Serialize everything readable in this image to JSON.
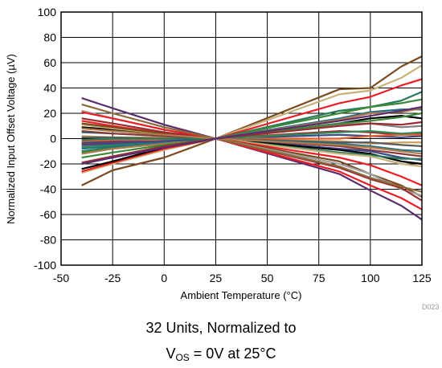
{
  "chart_data": {
    "type": "line",
    "xlabel": "Ambient Temperature (°C)",
    "ylabel": "Normalized Input Offset Voltage (µV)",
    "xlim": [
      -50,
      125
    ],
    "ylim": [
      -100,
      100
    ],
    "xticks": [
      -50,
      -25,
      0,
      25,
      50,
      75,
      100,
      125
    ],
    "yticks": [
      -100,
      -80,
      -60,
      -40,
      -20,
      0,
      20,
      40,
      60,
      80,
      100
    ],
    "grid": true,
    "legend": "none",
    "code": "D023",
    "x": [
      -40,
      -25,
      0,
      25,
      85,
      100,
      115,
      125
    ],
    "series": [
      {
        "color": "#7a4a1f",
        "values": [
          -37,
          -25,
          -15,
          0,
          39,
          40,
          57,
          65
        ]
      },
      {
        "color": "#c9b27a",
        "values": [
          -27,
          -20,
          -9,
          0,
          35,
          38,
          48,
          58
        ]
      },
      {
        "color": "#ee1c24",
        "values": [
          -26,
          -19,
          -8,
          0,
          28,
          33,
          42,
          47
        ]
      },
      {
        "color": "#2a7a5a",
        "values": [
          -10,
          -7,
          -4,
          0,
          22,
          25,
          30,
          37
        ]
      },
      {
        "color": "#3a8a3a",
        "values": [
          -11,
          -8,
          -4,
          0,
          20,
          25,
          28,
          31
        ]
      },
      {
        "color": "#1f6f86",
        "values": [
          -8,
          -6,
          -3,
          0,
          16,
          21,
          23,
          23
        ]
      },
      {
        "color": "#b07a4a",
        "values": [
          -12,
          -8,
          -4,
          0,
          15,
          20,
          21,
          24
        ]
      },
      {
        "color": "#000000",
        "values": [
          -24,
          -18,
          -7,
          0,
          12,
          16,
          18,
          16
        ]
      },
      {
        "color": "#7f7f7f",
        "values": [
          -6,
          -4,
          -2,
          0,
          11,
          12,
          9,
          10
        ]
      },
      {
        "color": "#9b2d30",
        "values": [
          -4,
          -3,
          -1,
          0,
          6,
          5,
          3,
          4
        ]
      },
      {
        "color": "#3d4a8a",
        "values": [
          -3,
          -2,
          -1,
          0,
          3,
          2,
          1,
          2
        ]
      },
      {
        "color": "#c8a060",
        "values": [
          2,
          1,
          1,
          0,
          -2,
          -4,
          -3,
          -3
        ]
      },
      {
        "color": "#e06030",
        "values": [
          -2,
          -1,
          -1,
          0,
          0,
          2,
          3,
          3
        ]
      },
      {
        "color": "#5a5a5a",
        "values": [
          1,
          1,
          0,
          0,
          -3,
          -3,
          -5,
          -6
        ]
      },
      {
        "color": "#2e8b57",
        "values": [
          -7,
          -5,
          -2,
          0,
          5,
          6,
          4,
          5
        ]
      },
      {
        "color": "#1f6f86",
        "values": [
          5,
          4,
          2,
          0,
          -4,
          -6,
          -9,
          -10
        ]
      },
      {
        "color": "#8b3a3a",
        "values": [
          6,
          4,
          2,
          0,
          -6,
          -9,
          -12,
          -14
        ]
      },
      {
        "color": "#3d4a8a",
        "values": [
          -5,
          -4,
          -2,
          0,
          -8,
          -10,
          -15,
          -17
        ]
      },
      {
        "color": "#000000",
        "values": [
          9,
          7,
          3,
          0,
          -9,
          -12,
          -18,
          -20
        ]
      },
      {
        "color": "#2a7a5a",
        "values": [
          -1,
          0,
          0,
          0,
          -11,
          -13,
          -16,
          -16
        ]
      },
      {
        "color": "#c9b27a",
        "values": [
          11,
          8,
          4,
          0,
          -12,
          -14,
          -20,
          -22
        ]
      },
      {
        "color": "#ee1c24",
        "values": [
          14,
          10,
          4,
          0,
          -15,
          -21,
          -30,
          -37
        ]
      },
      {
        "color": "#7a4a1f",
        "values": [
          12,
          9,
          4,
          0,
          -18,
          -28,
          -37,
          -46
        ]
      },
      {
        "color": "#a0a0a0",
        "values": [
          22,
          16,
          7,
          0,
          -20,
          -28,
          -40,
          -45
        ]
      },
      {
        "color": "#9b2d30",
        "values": [
          16,
          12,
          5,
          0,
          -23,
          -32,
          -39,
          -49
        ]
      },
      {
        "color": "#5b2d6e",
        "values": [
          32,
          24,
          11,
          0,
          -28,
          -41,
          -53,
          -64
        ]
      },
      {
        "color": "#ee1c24",
        "values": [
          21,
          16,
          7,
          0,
          -26,
          -37,
          -47,
          -56
        ]
      },
      {
        "color": "#8a6a3a",
        "values": [
          27,
          20,
          9,
          0,
          -22,
          -31,
          -38,
          -42
        ]
      },
      {
        "color": "#b07a4a",
        "values": [
          8,
          6,
          3,
          0,
          -5,
          -7,
          -10,
          -12
        ]
      },
      {
        "color": "#3a8a3a",
        "values": [
          -15,
          -11,
          -5,
          0,
          12,
          14,
          17,
          20
        ]
      },
      {
        "color": "#9b2d30",
        "values": [
          -19,
          -14,
          -6,
          0,
          10,
          12,
          11,
          13
        ]
      },
      {
        "color": "#5b2d6e",
        "values": [
          -20,
          -15,
          -7,
          0,
          14,
          18,
          22,
          25
        ]
      }
    ]
  },
  "caption": {
    "line1": "32 Units, Normalized to",
    "line2_main": "V",
    "line2_sub": "OS",
    "line2_rest": " = 0V at 25°C"
  }
}
